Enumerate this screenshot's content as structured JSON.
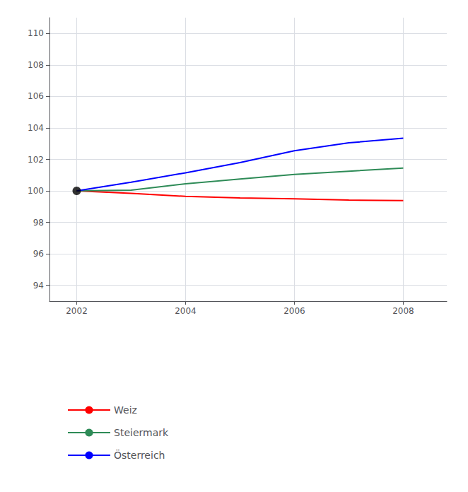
{
  "chart_data": {
    "type": "line",
    "x": [
      2002,
      2003,
      2004,
      2005,
      2006,
      2007,
      2008
    ],
    "series": [
      {
        "name": "Weiz",
        "color": "#ff0000",
        "values": [
          100.0,
          99.85,
          99.65,
          99.55,
          99.5,
          99.42,
          99.38
        ]
      },
      {
        "name": "Steiermark",
        "color": "#2e8b57",
        "values": [
          100.0,
          100.05,
          100.45,
          100.75,
          101.05,
          101.25,
          101.45
        ]
      },
      {
        "name": "Österreich",
        "color": "#0000ff",
        "values": [
          100.0,
          100.55,
          101.15,
          101.8,
          102.55,
          103.05,
          103.35
        ]
      },
      {
        "type": "scatter",
        "color": "#000000",
        "marker": "circle",
        "values": [
          100.0,
          null,
          null,
          null,
          null,
          null,
          null
        ]
      }
    ],
    "xlim": [
      2001.5,
      2008.8
    ],
    "xticks": [
      2002,
      2004,
      2006,
      2008
    ],
    "ylim": [
      93,
      111
    ],
    "yticks": [
      94,
      96,
      98,
      100,
      102,
      104,
      106,
      108,
      110
    ],
    "grid": true,
    "legend": "bottom"
  }
}
